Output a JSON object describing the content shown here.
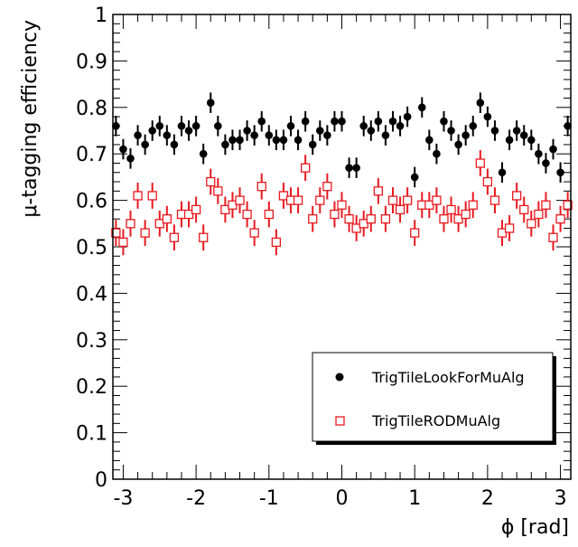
{
  "chart_data": {
    "type": "scatter",
    "title": "",
    "xlabel": "ϕ [rad]",
    "ylabel": "μ-tagging efficiency",
    "xlim": [
      -3.1416,
      3.1416
    ],
    "ylim": [
      0,
      1
    ],
    "grid": false,
    "legend_position": "bottom-right",
    "x_ticks": [
      -3,
      -2,
      -1,
      0,
      1,
      2,
      3
    ],
    "x_tick_labels": [
      "-3",
      "-2",
      "-1",
      "0",
      "1",
      "2",
      "3"
    ],
    "y_ticks": [
      0,
      0.1,
      0.2,
      0.3,
      0.4,
      0.5,
      0.6,
      0.7,
      0.8,
      0.9,
      1
    ],
    "y_tick_labels": [
      "0",
      "0.1",
      "0.2",
      "0.3",
      "0.4",
      "0.5",
      "0.6",
      "0.7",
      "0.8",
      "0.9",
      "1"
    ],
    "x": [
      -3.1,
      -3.0,
      -2.9,
      -2.8,
      -2.7,
      -2.6,
      -2.5,
      -2.4,
      -2.3,
      -2.2,
      -2.1,
      -2.0,
      -1.9,
      -1.8,
      -1.7,
      -1.6,
      -1.5,
      -1.4,
      -1.3,
      -1.2,
      -1.1,
      -1.0,
      -0.9,
      -0.8,
      -0.7,
      -0.6,
      -0.5,
      -0.4,
      -0.3,
      -0.2,
      -0.1,
      0.0,
      0.1,
      0.2,
      0.3,
      0.4,
      0.5,
      0.6,
      0.7,
      0.8,
      0.9,
      1.0,
      1.1,
      1.2,
      1.3,
      1.4,
      1.5,
      1.6,
      1.7,
      1.8,
      1.9,
      2.0,
      2.1,
      2.2,
      2.3,
      2.4,
      2.5,
      2.6,
      2.7,
      2.8,
      2.9,
      3.0,
      3.1
    ],
    "series": [
      {
        "name": "TrigTileLookForMuAlg",
        "marker": "filled-circle",
        "color": "#000000",
        "values": [
          0.76,
          0.71,
          0.69,
          0.74,
          0.72,
          0.75,
          0.76,
          0.74,
          0.72,
          0.76,
          0.75,
          0.76,
          0.7,
          0.81,
          0.76,
          0.72,
          0.73,
          0.73,
          0.75,
          0.74,
          0.77,
          0.74,
          0.73,
          0.73,
          0.76,
          0.73,
          0.77,
          0.72,
          0.75,
          0.74,
          0.77,
          0.77,
          0.67,
          0.67,
          0.76,
          0.75,
          0.77,
          0.74,
          0.77,
          0.76,
          0.78,
          0.65,
          0.8,
          0.73,
          0.7,
          0.77,
          0.75,
          0.72,
          0.74,
          0.76,
          0.81,
          0.78,
          0.75,
          0.66,
          0.73,
          0.75,
          0.74,
          0.73,
          0.7,
          0.68,
          0.71,
          0.66,
          0.76
        ],
        "errors": [
          0.022,
          0.022,
          0.022,
          0.022,
          0.022,
          0.022,
          0.022,
          0.022,
          0.022,
          0.022,
          0.022,
          0.022,
          0.022,
          0.022,
          0.022,
          0.022,
          0.022,
          0.022,
          0.022,
          0.022,
          0.022,
          0.022,
          0.022,
          0.022,
          0.022,
          0.022,
          0.022,
          0.022,
          0.022,
          0.022,
          0.022,
          0.022,
          0.022,
          0.022,
          0.022,
          0.022,
          0.022,
          0.022,
          0.022,
          0.022,
          0.022,
          0.022,
          0.022,
          0.022,
          0.022,
          0.022,
          0.022,
          0.022,
          0.022,
          0.022,
          0.022,
          0.022,
          0.022,
          0.022,
          0.022,
          0.022,
          0.022,
          0.022,
          0.022,
          0.022,
          0.022,
          0.022,
          0.022
        ]
      },
      {
        "name": "TrigTileRODMuAlg",
        "marker": "open-square",
        "color": "#e8191f",
        "values": [
          0.53,
          0.51,
          0.55,
          0.61,
          0.53,
          0.61,
          0.55,
          0.56,
          0.52,
          0.57,
          0.57,
          0.58,
          0.52,
          0.64,
          0.62,
          0.58,
          0.59,
          0.6,
          0.57,
          0.53,
          0.63,
          0.57,
          0.51,
          0.61,
          0.6,
          0.6,
          0.67,
          0.56,
          0.6,
          0.63,
          0.57,
          0.59,
          0.56,
          0.54,
          0.55,
          0.56,
          0.62,
          0.56,
          0.6,
          0.58,
          0.6,
          0.53,
          0.59,
          0.59,
          0.6,
          0.56,
          0.58,
          0.56,
          0.57,
          0.59,
          0.68,
          0.64,
          0.6,
          0.53,
          0.54,
          0.61,
          0.58,
          0.55,
          0.57,
          0.59,
          0.52,
          0.56,
          0.59
        ],
        "errors": [
          0.028,
          0.028,
          0.028,
          0.028,
          0.028,
          0.028,
          0.028,
          0.028,
          0.028,
          0.028,
          0.028,
          0.028,
          0.028,
          0.028,
          0.028,
          0.028,
          0.028,
          0.028,
          0.028,
          0.028,
          0.028,
          0.028,
          0.028,
          0.028,
          0.028,
          0.028,
          0.028,
          0.028,
          0.028,
          0.028,
          0.028,
          0.028,
          0.028,
          0.028,
          0.028,
          0.028,
          0.028,
          0.028,
          0.028,
          0.028,
          0.028,
          0.028,
          0.028,
          0.028,
          0.028,
          0.028,
          0.028,
          0.028,
          0.028,
          0.028,
          0.028,
          0.028,
          0.028,
          0.028,
          0.028,
          0.028,
          0.028,
          0.028,
          0.028,
          0.028,
          0.028,
          0.028,
          0.028
        ]
      }
    ]
  }
}
